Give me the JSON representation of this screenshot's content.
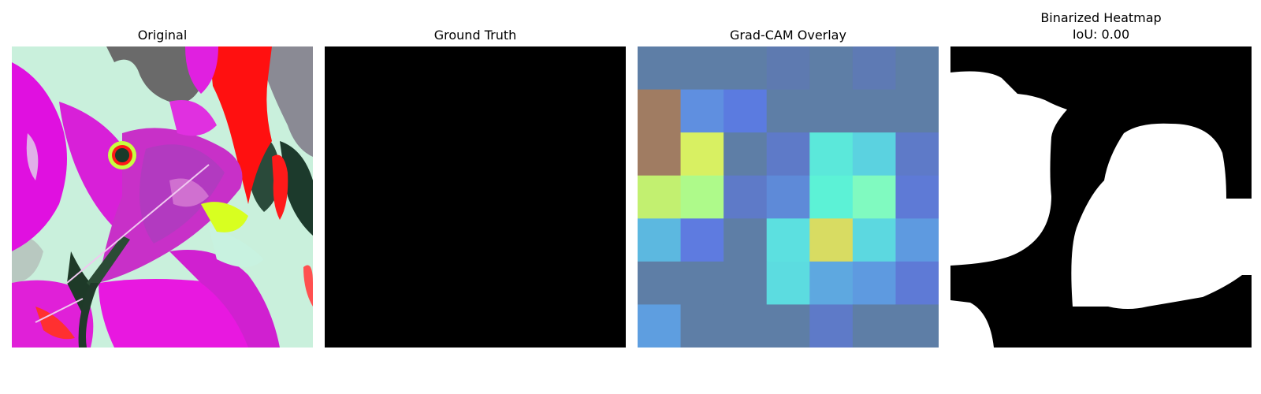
{
  "panels": [
    {
      "id": "original",
      "title": "Original"
    },
    {
      "id": "ground-truth",
      "title": "Ground Truth"
    },
    {
      "id": "gradcam-overlay",
      "title": "Grad-CAM Overlay"
    },
    {
      "id": "binarized-heatmap",
      "title": "Binarized Heatmap",
      "subtitle": "IoU: 0.00"
    }
  ],
  "gradcam_grid": {
    "rows": 7,
    "cols": 7,
    "colors": [
      [
        "#5e7ea6",
        "#5e7ea6",
        "#5e7ea6",
        "#5e7ab0",
        "#5e7ea6",
        "#5e7ab4",
        "#5e7ea6"
      ],
      [
        "#a07c62",
        "#5f8fe0",
        "#5b7be0",
        "#5e7ea6",
        "#5e7ea6",
        "#5e7ea6",
        "#5e7ea6"
      ],
      [
        "#a07c62",
        "#d8f062",
        "#5e7ea6",
        "#5e7ac8",
        "#5be8da",
        "#5bd2e0",
        "#5e7ac8"
      ],
      [
        "#c2f070",
        "#aefa8a",
        "#5e7ac8",
        "#5e8ad8",
        "#5cf2d6",
        "#80fac0",
        "#5e7ad6"
      ],
      [
        "#5cb8e0",
        "#5e7be0",
        "#5e7ea6",
        "#5ce0e0",
        "#d8dc62",
        "#5cd8e0",
        "#5e9ae0"
      ],
      [
        "#5e7ea6",
        "#5e7ea6",
        "#5e7ea6",
        "#5cdce0",
        "#5ea8e0",
        "#5e9ae0",
        "#5e7ad6"
      ],
      [
        "#5e9ee0",
        "#5e7ea6",
        "#5e7ea6",
        "#5e7ea6",
        "#5e7ac8",
        "#5e7ea6",
        "#5e7ea6"
      ]
    ]
  }
}
